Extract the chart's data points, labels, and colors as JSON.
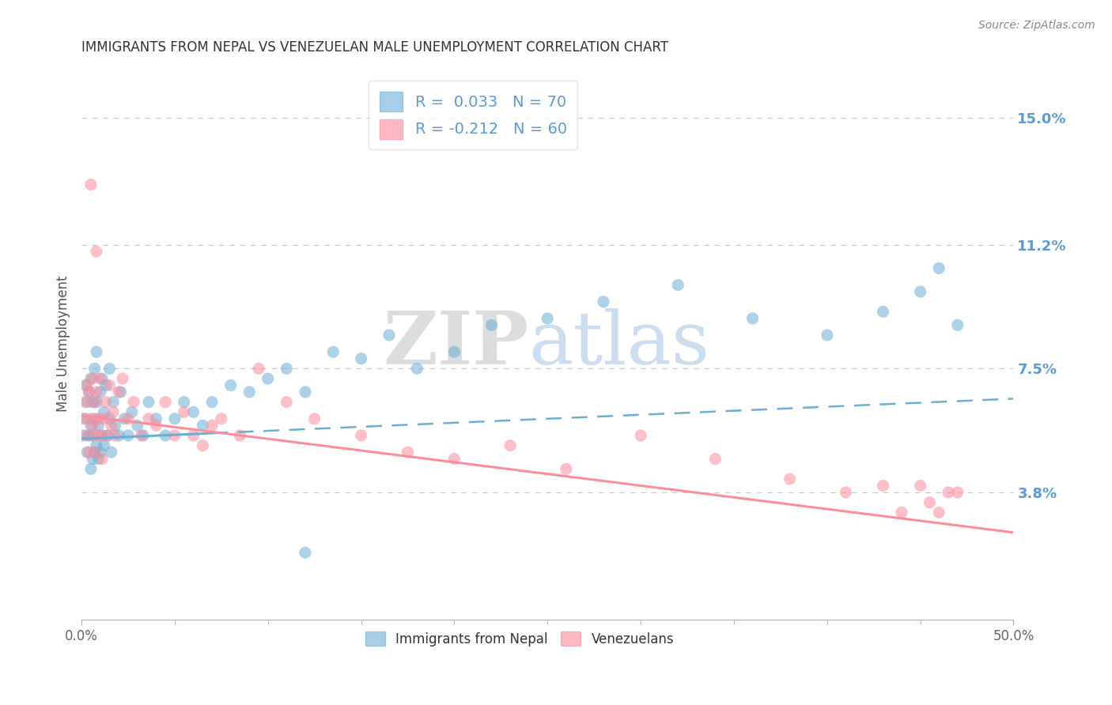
{
  "title": "IMMIGRANTS FROM NEPAL VS VENEZUELAN MALE UNEMPLOYMENT CORRELATION CHART",
  "source_text": "Source: ZipAtlas.com",
  "ylabel": "Male Unemployment",
  "x_min": 0.0,
  "x_max": 0.5,
  "y_min": 0.0,
  "y_max": 0.165,
  "x_tick_positions": [
    0.0,
    0.5
  ],
  "x_tick_labels": [
    "0.0%",
    "50.0%"
  ],
  "y_ticks": [
    0.038,
    0.075,
    0.112,
    0.15
  ],
  "y_tick_labels": [
    "3.8%",
    "7.5%",
    "11.2%",
    "15.0%"
  ],
  "legend_nepal_label": "R =  0.033   N = 70",
  "legend_venezuela_label": "R = -0.212   N = 60",
  "legend_label_nepal": "Immigrants from Nepal",
  "legend_label_venezuela": "Venezuelans",
  "nepal_color": "#6baed6",
  "venezuela_color": "#fc8d9c",
  "nepal_r": 0.033,
  "nepal_n": 70,
  "venezuela_r": -0.212,
  "venezuela_n": 60,
  "watermark_zip": "ZIP",
  "watermark_atlas": "atlas",
  "background_color": "#ffffff",
  "axis_color": "#5b9bd5",
  "grid_color": "#c8c8c8",
  "title_fontsize": 12,
  "nepal_line_start_y": 0.054,
  "nepal_line_end_y": 0.066,
  "venezuela_line_start_y": 0.061,
  "venezuela_line_end_y": 0.026,
  "nepal_scatter_x": [
    0.001,
    0.002,
    0.002,
    0.003,
    0.003,
    0.004,
    0.004,
    0.005,
    0.005,
    0.005,
    0.006,
    0.006,
    0.006,
    0.007,
    0.007,
    0.007,
    0.008,
    0.008,
    0.008,
    0.009,
    0.009,
    0.01,
    0.01,
    0.011,
    0.011,
    0.012,
    0.012,
    0.013,
    0.014,
    0.015,
    0.015,
    0.016,
    0.017,
    0.018,
    0.02,
    0.021,
    0.023,
    0.025,
    0.027,
    0.03,
    0.033,
    0.036,
    0.04,
    0.045,
    0.05,
    0.055,
    0.06,
    0.065,
    0.07,
    0.08,
    0.09,
    0.1,
    0.11,
    0.12,
    0.135,
    0.15,
    0.165,
    0.18,
    0.2,
    0.22,
    0.25,
    0.28,
    0.32,
    0.36,
    0.4,
    0.43,
    0.45,
    0.46,
    0.47,
    0.12
  ],
  "nepal_scatter_y": [
    0.055,
    0.06,
    0.07,
    0.05,
    0.065,
    0.055,
    0.068,
    0.045,
    0.058,
    0.072,
    0.048,
    0.055,
    0.065,
    0.05,
    0.06,
    0.075,
    0.052,
    0.065,
    0.08,
    0.048,
    0.058,
    0.05,
    0.068,
    0.055,
    0.072,
    0.052,
    0.062,
    0.07,
    0.055,
    0.06,
    0.075,
    0.05,
    0.065,
    0.058,
    0.055,
    0.068,
    0.06,
    0.055,
    0.062,
    0.058,
    0.055,
    0.065,
    0.06,
    0.055,
    0.06,
    0.065,
    0.062,
    0.058,
    0.065,
    0.07,
    0.068,
    0.072,
    0.075,
    0.068,
    0.08,
    0.078,
    0.085,
    0.075,
    0.08,
    0.088,
    0.09,
    0.095,
    0.1,
    0.09,
    0.085,
    0.092,
    0.098,
    0.105,
    0.088,
    0.02
  ],
  "venezuela_scatter_x": [
    0.001,
    0.002,
    0.003,
    0.003,
    0.004,
    0.004,
    0.005,
    0.005,
    0.006,
    0.006,
    0.007,
    0.007,
    0.008,
    0.008,
    0.009,
    0.01,
    0.01,
    0.011,
    0.012,
    0.013,
    0.014,
    0.015,
    0.016,
    0.017,
    0.018,
    0.02,
    0.022,
    0.025,
    0.028,
    0.032,
    0.036,
    0.04,
    0.045,
    0.05,
    0.055,
    0.06,
    0.065,
    0.07,
    0.075,
    0.085,
    0.095,
    0.11,
    0.125,
    0.15,
    0.175,
    0.2,
    0.23,
    0.26,
    0.3,
    0.34,
    0.38,
    0.41,
    0.43,
    0.44,
    0.45,
    0.455,
    0.46,
    0.465,
    0.47,
    0.008
  ],
  "venezuela_scatter_y": [
    0.06,
    0.065,
    0.055,
    0.07,
    0.05,
    0.068,
    0.06,
    0.13,
    0.058,
    0.072,
    0.05,
    0.065,
    0.055,
    0.068,
    0.06,
    0.055,
    0.072,
    0.048,
    0.06,
    0.065,
    0.055,
    0.07,
    0.058,
    0.062,
    0.055,
    0.068,
    0.072,
    0.06,
    0.065,
    0.055,
    0.06,
    0.058,
    0.065,
    0.055,
    0.062,
    0.055,
    0.052,
    0.058,
    0.06,
    0.055,
    0.075,
    0.065,
    0.06,
    0.055,
    0.05,
    0.048,
    0.052,
    0.045,
    0.055,
    0.048,
    0.042,
    0.038,
    0.04,
    0.032,
    0.04,
    0.035,
    0.032,
    0.038,
    0.038,
    0.11
  ]
}
